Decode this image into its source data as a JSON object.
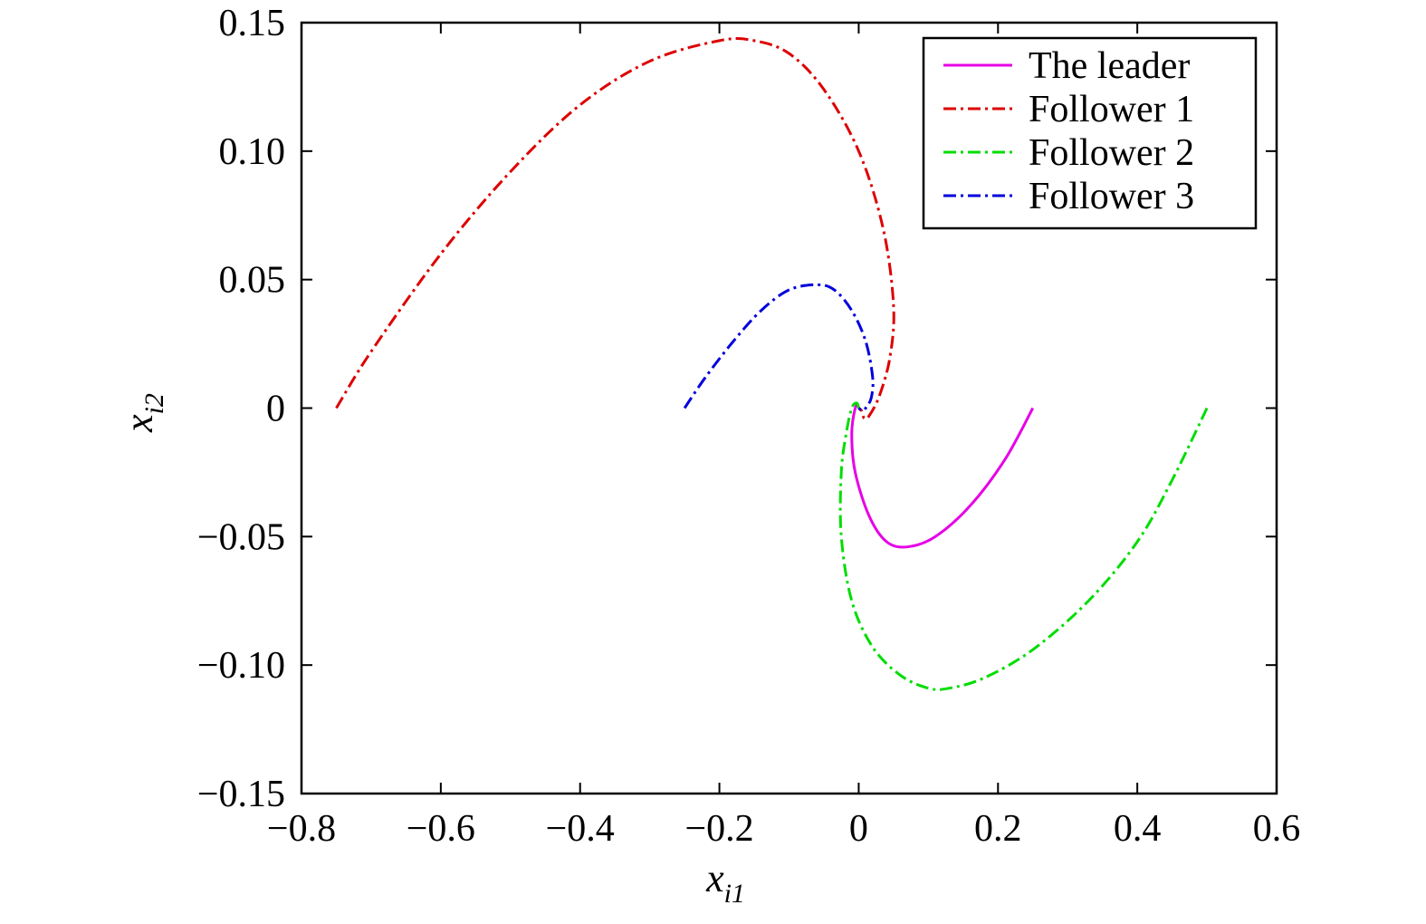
{
  "chart_data": {
    "type": "line",
    "xlabel": {
      "base": "x",
      "sub": "i1"
    },
    "ylabel": {
      "base": "x",
      "sub": "i2"
    },
    "xlim": [
      -0.8,
      0.6
    ],
    "ylim": [
      -0.15,
      0.15
    ],
    "xticks": [
      -0.8,
      -0.6,
      -0.4,
      -0.2,
      0,
      0.2,
      0.4,
      0.6
    ],
    "xtick_labels": [
      "−0.8",
      "−0.6",
      "−0.4",
      "−0.2",
      "0",
      "0.2",
      "0.4",
      "0.6"
    ],
    "yticks": [
      0.15,
      0.1,
      0.05,
      0,
      -0.05,
      -0.1,
      -0.15
    ],
    "ytick_labels": [
      "0.15",
      "0.10",
      "0.05",
      "0",
      "−0.05",
      "−0.10",
      "−0.15"
    ],
    "grid": false,
    "legend_position": "top-right",
    "series": [
      {
        "name": "The leader",
        "color": "#e600e6",
        "style": "solid",
        "points": [
          [
            0.25,
            0.0
          ],
          [
            0.21,
            -0.02
          ],
          [
            0.16,
            -0.038
          ],
          [
            0.11,
            -0.05
          ],
          [
            0.07,
            -0.054
          ],
          [
            0.04,
            -0.052
          ],
          [
            0.015,
            -0.042
          ],
          [
            -0.005,
            -0.025
          ],
          [
            -0.01,
            -0.01
          ],
          [
            -0.005,
            0.0
          ],
          [
            0.0,
            0.001
          ]
        ]
      },
      {
        "name": "Follower 1",
        "color": "#dd0000",
        "style": "dashdot",
        "points": [
          [
            -0.75,
            0.0
          ],
          [
            -0.7,
            0.022
          ],
          [
            -0.6,
            0.06
          ],
          [
            -0.5,
            0.092
          ],
          [
            -0.4,
            0.118
          ],
          [
            -0.3,
            0.135
          ],
          [
            -0.2,
            0.143
          ],
          [
            -0.15,
            0.143
          ],
          [
            -0.1,
            0.138
          ],
          [
            -0.05,
            0.124
          ],
          [
            0.0,
            0.1
          ],
          [
            0.035,
            0.07
          ],
          [
            0.05,
            0.04
          ],
          [
            0.045,
            0.02
          ],
          [
            0.03,
            0.005
          ],
          [
            0.015,
            -0.003
          ],
          [
            0.008,
            -0.004
          ],
          [
            0.004,
            -0.001
          ],
          [
            0.0,
            0.0
          ]
        ]
      },
      {
        "name": "Follower 2",
        "color": "#00dd00",
        "style": "dashdot",
        "points": [
          [
            0.5,
            0.0
          ],
          [
            0.45,
            -0.028
          ],
          [
            0.4,
            -0.052
          ],
          [
            0.33,
            -0.075
          ],
          [
            0.25,
            -0.094
          ],
          [
            0.18,
            -0.105
          ],
          [
            0.13,
            -0.109
          ],
          [
            0.1,
            -0.109
          ],
          [
            0.06,
            -0.104
          ],
          [
            0.02,
            -0.093
          ],
          [
            -0.01,
            -0.075
          ],
          [
            -0.025,
            -0.05
          ],
          [
            -0.025,
            -0.025
          ],
          [
            -0.018,
            -0.01
          ],
          [
            -0.01,
            0.0
          ],
          [
            -0.003,
            0.002
          ],
          [
            0.0,
            0.0
          ]
        ]
      },
      {
        "name": "Follower 3",
        "color": "#0000dd",
        "style": "dashdot",
        "points": [
          [
            -0.25,
            0.0
          ],
          [
            -0.22,
            0.012
          ],
          [
            -0.18,
            0.026
          ],
          [
            -0.14,
            0.038
          ],
          [
            -0.1,
            0.046
          ],
          [
            -0.06,
            0.048
          ],
          [
            -0.035,
            0.046
          ],
          [
            -0.01,
            0.038
          ],
          [
            0.01,
            0.026
          ],
          [
            0.02,
            0.012
          ],
          [
            0.018,
            0.004
          ],
          [
            0.01,
            0.0
          ],
          [
            0.005,
            -0.001
          ],
          [
            0.0,
            0.0
          ]
        ]
      }
    ]
  }
}
